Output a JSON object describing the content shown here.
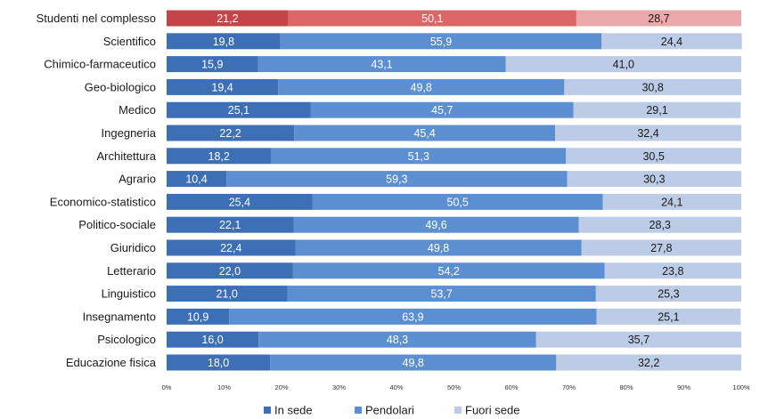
{
  "chart_data": {
    "type": "bar",
    "orientation": "horizontal",
    "stacked": true,
    "title": "",
    "xlabel": "",
    "ylabel": "",
    "xlim": [
      0,
      100
    ],
    "x_ticks": [
      "0%",
      "10%",
      "20%",
      "30%",
      "40%",
      "50%",
      "60%",
      "70%",
      "80%",
      "90%",
      "100%"
    ],
    "grid": false,
    "legend_position": "bottom",
    "categories": [
      "Studenti nel complesso",
      "Scientifico",
      "Chimico-farmaceutico",
      "Geo-biologico",
      "Medico",
      "Ingegneria",
      "Architettura",
      "Agrario",
      "Economico-statistico",
      "Politico-sociale",
      "Giuridico",
      "Letterario",
      "Linguistico",
      "Insegnamento",
      "Psicologico",
      "Educazione fisica"
    ],
    "series": [
      {
        "name": "In sede",
        "values": [
          21.2,
          19.8,
          15.9,
          19.4,
          25.1,
          22.2,
          18.2,
          10.4,
          25.4,
          22.1,
          22.4,
          22.0,
          21.0,
          10.9,
          16.0,
          18.0
        ],
        "labels": [
          "21,2",
          "19,8",
          "15,9",
          "19,4",
          "25,1",
          "22,2",
          "18,2",
          "10,4",
          "25,4",
          "22,1",
          "22,4",
          "22,0",
          "21,0",
          "10,9",
          "16,0",
          "18,0"
        ]
      },
      {
        "name": "Pendolari",
        "values": [
          50.1,
          55.9,
          43.1,
          49.8,
          45.7,
          45.4,
          51.3,
          59.3,
          50.5,
          49.6,
          49.8,
          54.2,
          53.7,
          63.9,
          48.3,
          49.8
        ],
        "labels": [
          "50,1",
          "55,9",
          "43,1",
          "49,8",
          "45,7",
          "45,4",
          "51,3",
          "59,3",
          "50,5",
          "49,6",
          "49,8",
          "54,2",
          "53,7",
          "63,9",
          "48,3",
          "49,8"
        ]
      },
      {
        "name": "Fuori sede",
        "values": [
          28.7,
          24.4,
          41.0,
          30.8,
          29.1,
          32.4,
          30.5,
          30.3,
          24.1,
          28.3,
          27.8,
          23.8,
          25.3,
          25.1,
          35.7,
          32.2
        ],
        "labels": [
          "28,7",
          "24,4",
          "41,0",
          "30,8",
          "29,1",
          "32,4",
          "30,5",
          "30,3",
          "24,1",
          "28,3",
          "27,8",
          "23,8",
          "25,3",
          "25,1",
          "35,7",
          "32,2"
        ]
      }
    ],
    "colors": {
      "In sede": "#3c6fb6",
      "Pendolari": "#5b8fd1",
      "Fuori sede": "#bccbe6",
      "highlight": [
        "#c54448",
        "#dc6566",
        "#eba8aa"
      ],
      "label_on_dark": "#ffffff",
      "label_on_light": "#1a1a1a"
    },
    "highlight_category_index": 0
  }
}
